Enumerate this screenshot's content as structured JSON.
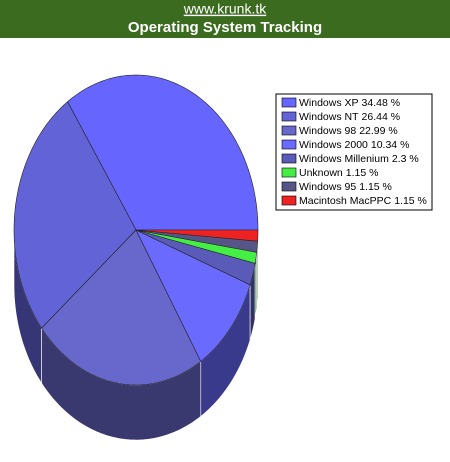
{
  "chart_data": {
    "type": "pie3d",
    "subtitle": "www.krunk.tk",
    "title": "Operating System Tracking",
    "categories": [
      "Windows XP",
      "Windows NT",
      "Windows 98",
      "Windows 2000",
      "Windows Millenium",
      "Unknown",
      "Windows 95",
      "Macintosh MacPPC"
    ],
    "values": [
      34.48,
      26.44,
      22.99,
      10.34,
      2.3,
      1.15,
      1.15,
      1.15
    ],
    "value_labels": [
      "34.48 %",
      "26.44 %",
      "22.99 %",
      "10.34 %",
      "2.3 %",
      "1.15 %",
      "1.15 %",
      "1.15 %"
    ],
    "colors": [
      "#6666ff",
      "#6363d8",
      "#6767cc",
      "#6a6aff",
      "#5a5ab8",
      "#44ee44",
      "#555588",
      "#ee2222"
    ],
    "legend": "right"
  }
}
